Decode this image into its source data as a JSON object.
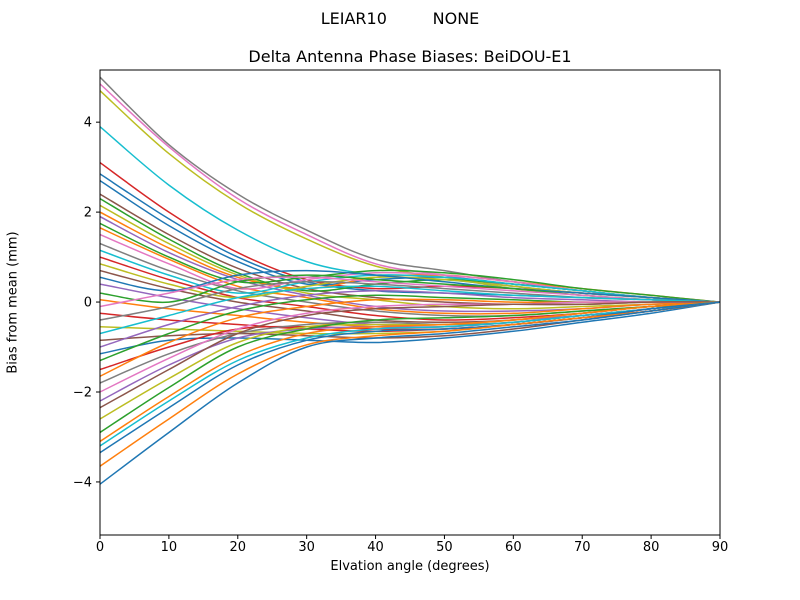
{
  "figure": {
    "suptitle": "LEIAR10         NONE",
    "axes_title": "Delta Antenna Phase Biases: BeiDOU-E1"
  },
  "chart_data": {
    "type": "line",
    "suptitle": "LEIAR10         NONE",
    "title": "Delta Antenna Phase Biases: BeiDOU-E1",
    "xlabel": "Elvation angle (degrees)",
    "ylabel": "Bias from mean (mm)",
    "xlim": [
      0,
      90
    ],
    "ylim": [
      -5.18,
      5.16
    ],
    "xticks": [
      0,
      10,
      20,
      30,
      40,
      50,
      60,
      70,
      80,
      90
    ],
    "yticks": [
      -4,
      -2,
      0,
      2,
      4
    ],
    "grid": false,
    "legend_position": "none",
    "x": [
      0,
      10,
      20,
      30,
      40,
      50,
      60,
      70,
      80,
      90
    ],
    "series": [
      {
        "color": "#7f7f7f",
        "values": [
          5.0,
          3.5,
          2.4,
          1.6,
          0.95,
          0.7,
          0.45,
          0.25,
          0.1,
          0
        ]
      },
      {
        "color": "#e377c2",
        "values": [
          4.85,
          3.45,
          2.3,
          1.5,
          0.85,
          0.6,
          0.35,
          0.2,
          0.1,
          0
        ]
      },
      {
        "color": "#bcbd22",
        "values": [
          4.7,
          3.3,
          2.2,
          1.4,
          0.8,
          0.55,
          0.3,
          0.15,
          0.05,
          0
        ]
      },
      {
        "color": "#17becf",
        "values": [
          3.9,
          2.6,
          1.6,
          0.9,
          0.6,
          0.5,
          0.35,
          0.2,
          0.1,
          0
        ]
      },
      {
        "color": "#d62728",
        "values": [
          3.1,
          2.0,
          1.1,
          0.5,
          0.3,
          0.35,
          0.3,
          0.2,
          0.1,
          0
        ]
      },
      {
        "color": "#1f77b4",
        "values": [
          2.85,
          1.85,
          1.0,
          0.45,
          0.25,
          0.2,
          0.15,
          0.1,
          0.05,
          0
        ]
      },
      {
        "color": "#1f77b4",
        "values": [
          2.7,
          1.7,
          0.9,
          0.4,
          0.5,
          0.55,
          0.4,
          0.25,
          0.1,
          0
        ]
      },
      {
        "color": "#8c564b",
        "values": [
          2.4,
          1.5,
          0.75,
          0.3,
          0.1,
          0.0,
          -0.05,
          -0.05,
          0.0,
          0
        ]
      },
      {
        "color": "#2ca02c",
        "values": [
          2.3,
          1.4,
          0.65,
          0.25,
          0.4,
          0.5,
          0.4,
          0.25,
          0.1,
          0
        ]
      },
      {
        "color": "#bcbd22",
        "values": [
          2.15,
          1.3,
          0.6,
          0.2,
          0.05,
          -0.1,
          -0.15,
          -0.1,
          -0.05,
          0
        ]
      },
      {
        "color": "#ff7f0e",
        "values": [
          2.0,
          1.2,
          0.55,
          0.3,
          0.55,
          0.6,
          0.45,
          0.3,
          0.15,
          0
        ]
      },
      {
        "color": "#9467bd",
        "values": [
          1.9,
          1.1,
          0.5,
          0.15,
          -0.1,
          -0.2,
          -0.2,
          -0.15,
          -0.05,
          0
        ]
      },
      {
        "color": "#2ca02c",
        "values": [
          1.75,
          1.0,
          0.45,
          0.55,
          0.7,
          0.65,
          0.5,
          0.3,
          0.15,
          0
        ]
      },
      {
        "color": "#ff7f0e",
        "values": [
          1.65,
          0.95,
          0.35,
          0.1,
          -0.15,
          -0.25,
          -0.25,
          -0.15,
          -0.05,
          0
        ]
      },
      {
        "color": "#e377c2",
        "values": [
          1.5,
          0.85,
          0.3,
          0.5,
          0.65,
          0.6,
          0.45,
          0.25,
          0.1,
          0
        ]
      },
      {
        "color": "#7f7f7f",
        "values": [
          1.3,
          0.7,
          0.25,
          0.0,
          -0.2,
          -0.3,
          -0.3,
          -0.2,
          -0.1,
          0
        ]
      },
      {
        "color": "#17becf",
        "values": [
          1.15,
          0.6,
          0.2,
          0.45,
          0.6,
          0.55,
          0.4,
          0.25,
          0.1,
          0
        ]
      },
      {
        "color": "#d62728",
        "values": [
          1.0,
          0.5,
          0.1,
          -0.1,
          -0.3,
          -0.4,
          -0.35,
          -0.25,
          -0.1,
          0
        ]
      },
      {
        "color": "#bcbd22",
        "values": [
          0.85,
          0.4,
          0.1,
          0.35,
          0.55,
          0.5,
          0.35,
          0.2,
          0.1,
          0
        ]
      },
      {
        "color": "#8c564b",
        "values": [
          0.7,
          0.3,
          0.0,
          -0.2,
          -0.4,
          -0.45,
          -0.4,
          -0.25,
          -0.1,
          0
        ]
      },
      {
        "color": "#1f77b4",
        "values": [
          0.55,
          0.25,
          0.6,
          0.7,
          0.6,
          0.45,
          0.3,
          0.2,
          0.1,
          0
        ]
      },
      {
        "color": "#9467bd",
        "values": [
          0.4,
          0.1,
          -0.15,
          -0.35,
          -0.5,
          -0.5,
          -0.4,
          -0.3,
          -0.15,
          0
        ]
      },
      {
        "color": "#2ca02c",
        "values": [
          0.2,
          0.0,
          0.45,
          0.6,
          0.5,
          0.4,
          0.3,
          0.15,
          0.05,
          0
        ]
      },
      {
        "color": "#ff7f0e",
        "values": [
          0.05,
          -0.15,
          -0.3,
          -0.45,
          -0.55,
          -0.55,
          -0.45,
          -0.3,
          -0.15,
          0
        ]
      },
      {
        "color": "#e377c2",
        "values": [
          -0.1,
          0.2,
          0.5,
          0.55,
          0.45,
          0.35,
          0.25,
          0.15,
          0.05,
          0
        ]
      },
      {
        "color": "#d62728",
        "values": [
          -0.25,
          -0.4,
          -0.5,
          -0.6,
          -0.65,
          -0.6,
          -0.5,
          -0.35,
          -0.15,
          0
        ]
      },
      {
        "color": "#7f7f7f",
        "values": [
          -0.4,
          -0.1,
          0.3,
          0.45,
          0.4,
          0.3,
          0.2,
          0.1,
          0.05,
          0
        ]
      },
      {
        "color": "#bcbd22",
        "values": [
          -0.55,
          -0.6,
          -0.65,
          -0.7,
          -0.7,
          -0.65,
          -0.5,
          -0.35,
          -0.2,
          0
        ]
      },
      {
        "color": "#17becf",
        "values": [
          -0.7,
          -0.3,
          0.1,
          0.3,
          0.35,
          0.25,
          0.15,
          0.1,
          0.05,
          0
        ]
      },
      {
        "color": "#8c564b",
        "values": [
          -0.85,
          -0.75,
          -0.7,
          -0.75,
          -0.8,
          -0.75,
          -0.6,
          -0.4,
          -0.2,
          0
        ]
      },
      {
        "color": "#9467bd",
        "values": [
          -1.0,
          -0.5,
          -0.1,
          0.15,
          0.25,
          0.2,
          0.1,
          0.05,
          0.0,
          0
        ]
      },
      {
        "color": "#1f77b4",
        "values": [
          -1.15,
          -0.85,
          -0.8,
          -0.85,
          -0.9,
          -0.8,
          -0.65,
          -0.45,
          -0.25,
          0
        ]
      },
      {
        "color": "#2ca02c",
        "values": [
          -1.3,
          -0.7,
          -0.2,
          0.05,
          0.15,
          0.1,
          0.05,
          0.0,
          0.0,
          0
        ]
      },
      {
        "color": "#d62728",
        "values": [
          -1.5,
          -1.0,
          -0.6,
          -0.55,
          -0.6,
          -0.6,
          -0.5,
          -0.35,
          -0.2,
          0
        ]
      },
      {
        "color": "#ff7f0e",
        "values": [
          -1.65,
          -0.9,
          -0.35,
          -0.1,
          0.05,
          0.05,
          0.0,
          0.0,
          0.0,
          0
        ]
      },
      {
        "color": "#7f7f7f",
        "values": [
          -1.8,
          -1.15,
          -0.7,
          -0.5,
          -0.45,
          -0.5,
          -0.45,
          -0.3,
          -0.15,
          0
        ]
      },
      {
        "color": "#e377c2",
        "values": [
          -2.0,
          -1.25,
          -0.6,
          -0.25,
          -0.1,
          -0.05,
          -0.05,
          0.0,
          0.0,
          0
        ]
      },
      {
        "color": "#9467bd",
        "values": [
          -2.2,
          -1.4,
          -0.8,
          -0.6,
          -0.55,
          -0.55,
          -0.45,
          -0.3,
          -0.15,
          0
        ]
      },
      {
        "color": "#8c564b",
        "values": [
          -2.35,
          -1.5,
          -0.7,
          -0.3,
          -0.15,
          -0.1,
          -0.05,
          -0.05,
          0.0,
          0
        ]
      },
      {
        "color": "#bcbd22",
        "values": [
          -2.6,
          -1.7,
          -0.9,
          -0.55,
          -0.5,
          -0.5,
          -0.4,
          -0.25,
          -0.1,
          0
        ]
      },
      {
        "color": "#2ca02c",
        "values": [
          -2.9,
          -1.9,
          -1.0,
          -0.6,
          -0.4,
          -0.35,
          -0.3,
          -0.2,
          -0.1,
          0
        ]
      },
      {
        "color": "#ff7f0e",
        "values": [
          -3.1,
          -2.1,
          -1.2,
          -0.7,
          -0.55,
          -0.5,
          -0.4,
          -0.25,
          -0.1,
          0
        ]
      },
      {
        "color": "#17becf",
        "values": [
          -3.2,
          -2.2,
          -1.3,
          -0.8,
          -0.6,
          -0.55,
          -0.45,
          -0.3,
          -0.15,
          0
        ]
      },
      {
        "color": "#1f77b4",
        "values": [
          -3.35,
          -2.35,
          -1.4,
          -0.85,
          -0.65,
          -0.6,
          -0.5,
          -0.35,
          -0.15,
          0
        ]
      },
      {
        "color": "#ff7f0e",
        "values": [
          -3.65,
          -2.6,
          -1.6,
          -0.95,
          -0.75,
          -0.65,
          -0.5,
          -0.35,
          -0.2,
          0
        ]
      },
      {
        "color": "#1f77b4",
        "values": [
          -4.05,
          -2.9,
          -1.8,
          -1.0,
          -0.8,
          -0.7,
          -0.55,
          -0.4,
          -0.2,
          0
        ]
      }
    ]
  }
}
